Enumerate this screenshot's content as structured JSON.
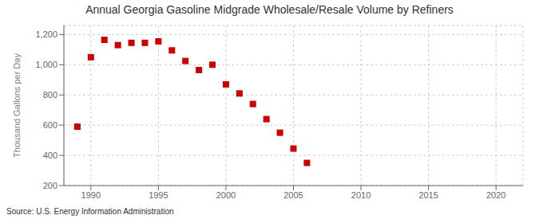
{
  "chart_data": {
    "type": "scatter",
    "title": "Annual Georgia Gasoline Midgrade Wholesale/Resale Volume by Refiners",
    "y_label": "Thousand Gallons per Day",
    "source": "Source: U.S. Energy Information Administration",
    "x": [
      1989,
      1990,
      1991,
      1992,
      1993,
      1994,
      1995,
      1996,
      1997,
      1998,
      1999,
      2000,
      2001,
      2002,
      2003,
      2004,
      2005,
      2006
    ],
    "values": [
      590,
      1050,
      1165,
      1130,
      1145,
      1145,
      1155,
      1095,
      1025,
      965,
      1000,
      870,
      810,
      740,
      640,
      550,
      445,
      350
    ],
    "color": "#cc0000",
    "marker": "square",
    "grid": true,
    "xlim": [
      1988,
      2022
    ],
    "ylim": [
      200,
      1260
    ],
    "xticks": [
      1990,
      1995,
      2000,
      2005,
      2010,
      2015,
      2020
    ],
    "yticks": [
      200,
      400,
      600,
      800,
      {
        "value": 1000,
        "label": "1,000"
      },
      {
        "value": 1200,
        "label": "1,200"
      }
    ]
  }
}
